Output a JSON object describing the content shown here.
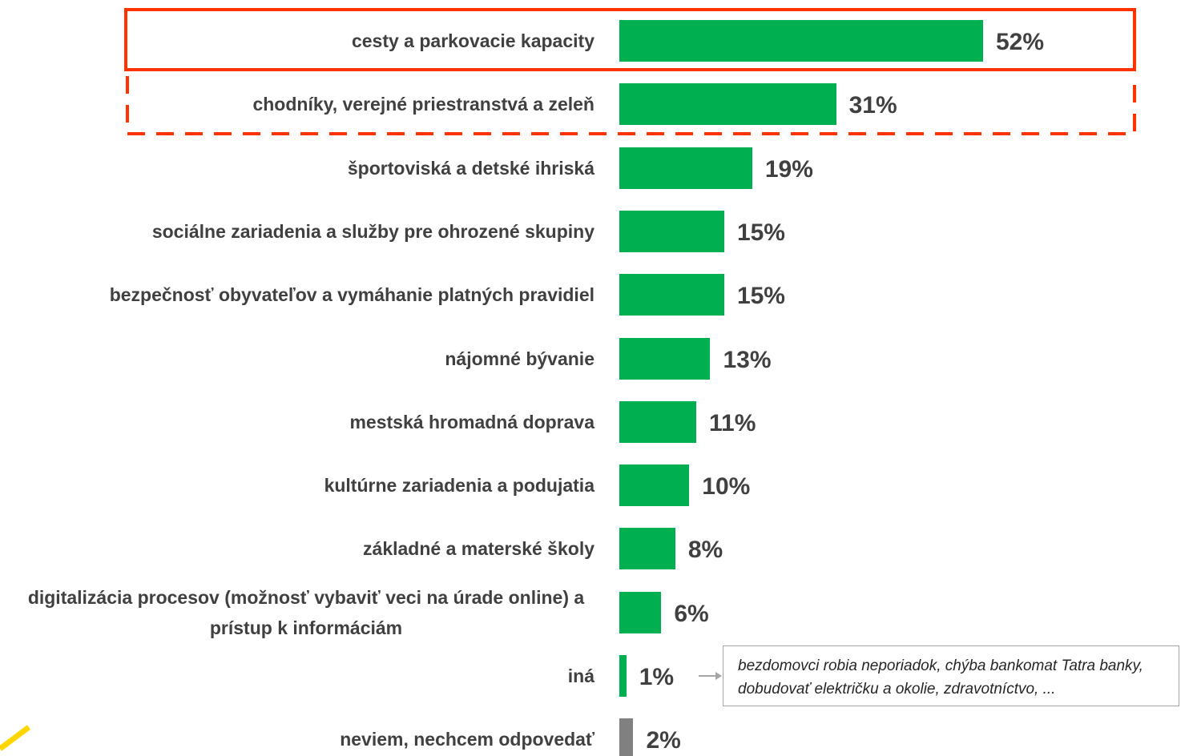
{
  "chart_data": {
    "type": "barh",
    "categories": [
      "cesty a parkovacie kapacity",
      "chodníky, verejné priestranstvá a zeleň",
      "športoviská a detské ihriská",
      "sociálne zariadenia a služby pre ohrozené skupiny",
      "bezpečnosť obyvateľov a vymáhanie platných pravidiel",
      "nájomné bývanie",
      "mestská hromadná doprava",
      "kultúrne zariadenia a podujatia",
      "základné a materské školy",
      "digitalizácia procesov (možnosť vybaviť veci na úrade online) a prístup k informáciám",
      "iná",
      "neviem, nechcem odpovedať"
    ],
    "values": [
      52,
      31,
      19,
      15,
      15,
      13,
      11,
      10,
      8,
      6,
      1,
      2
    ],
    "value_labels": [
      "52%",
      "31%",
      "19%",
      "15%",
      "15%",
      "13%",
      "11%",
      "10%",
      "8%",
      "6%",
      "1%",
      "2%"
    ],
    "colors": [
      "#00b050",
      "#00b050",
      "#00b050",
      "#00b050",
      "#00b050",
      "#00b050",
      "#00b050",
      "#00b050",
      "#00b050",
      "#00b050",
      "#00b050",
      "#808080"
    ],
    "annotation": "bezdomovci robia neporiadok, chýba bankomat Tatra banky, dobudovať električku a okolie, zdravotníctvo, ..."
  }
}
